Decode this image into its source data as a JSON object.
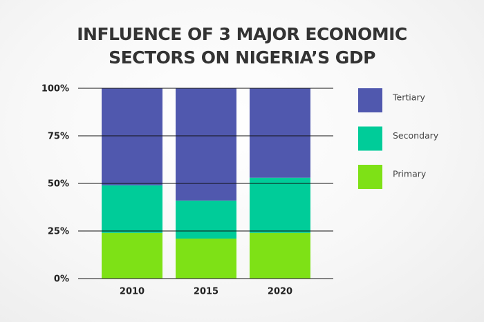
{
  "chart_data": {
    "type": "stacked-bar",
    "title": "INFLUENCE OF 3 MAJOR ECONOMIC SECTORS ON NIGERIA’S GDP",
    "categories": [
      "2010",
      "2015",
      "2020"
    ],
    "series": [
      {
        "name": "Primary",
        "color": "#7ee116",
        "values": [
          24,
          21,
          24
        ]
      },
      {
        "name": "Secondary",
        "color": "#00cc99",
        "values": [
          25,
          20,
          29
        ]
      },
      {
        "name": "Tertiary",
        "color": "#5058ae",
        "values": [
          51,
          59,
          47
        ]
      }
    ],
    "ylim": [
      0,
      100
    ],
    "yticks": [
      {
        "value": 0,
        "label": "0%"
      },
      {
        "value": 25,
        "label": "25%"
      },
      {
        "value": 50,
        "label": "50%"
      },
      {
        "value": 75,
        "label": "75%"
      },
      {
        "value": 100,
        "label": "100%"
      }
    ],
    "grid": true,
    "legend": "right"
  }
}
